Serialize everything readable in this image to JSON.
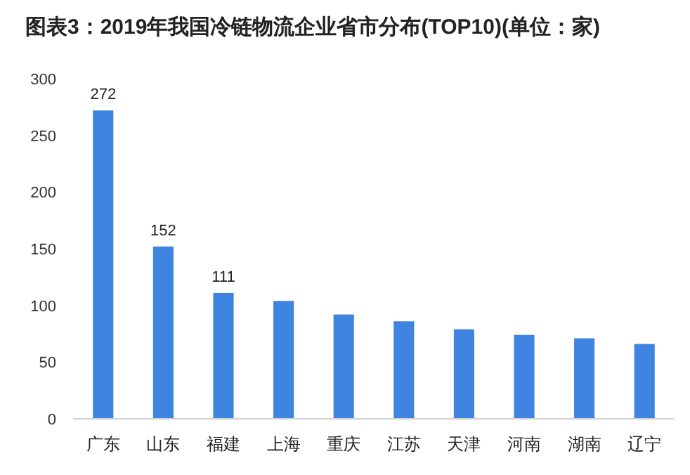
{
  "chart_data": {
    "type": "bar",
    "title": "图表3：2019年我国冷链物流企业省市分布(TOP10)(单位：家)",
    "categories": [
      "广东",
      "山东",
      "福建",
      "上海",
      "重庆",
      "江苏",
      "天津",
      "河南",
      "湖南",
      "辽宁"
    ],
    "values": [
      272,
      152,
      111,
      104,
      92,
      86,
      79,
      74,
      71,
      66
    ],
    "value_labels": [
      "272",
      "152",
      "111",
      null,
      null,
      null,
      null,
      null,
      null,
      null
    ],
    "color": "#3f84e0",
    "ylim": [
      0,
      300
    ],
    "yticks": [
      0,
      50,
      100,
      150,
      200,
      250,
      300
    ],
    "grid": false
  }
}
